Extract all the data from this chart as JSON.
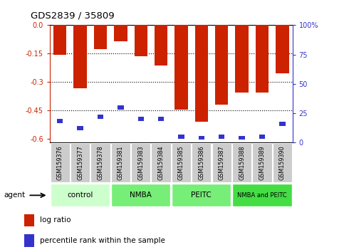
{
  "title": "GDS2839 / 35809",
  "samples": [
    "GSM159376",
    "GSM159377",
    "GSM159378",
    "GSM159381",
    "GSM159383",
    "GSM159384",
    "GSM159385",
    "GSM159386",
    "GSM159387",
    "GSM159388",
    "GSM159389",
    "GSM159390"
  ],
  "log_ratios": [
    -0.155,
    -0.335,
    -0.125,
    -0.085,
    -0.165,
    -0.215,
    -0.445,
    -0.51,
    -0.42,
    -0.355,
    -0.355,
    -0.255
  ],
  "percentile_ranks": [
    18,
    12,
    22,
    30,
    20,
    20,
    5,
    4,
    5,
    4,
    5,
    16
  ],
  "ylim_left": [
    -0.62,
    0.0
  ],
  "ylim_right": [
    0,
    100
  ],
  "yticks_left": [
    0.0,
    -0.15,
    -0.3,
    -0.45,
    -0.6
  ],
  "yticks_right": [
    0,
    25,
    50,
    75,
    100
  ],
  "bar_color": "#cc2200",
  "marker_color": "#3333cc",
  "bar_width": 0.65,
  "left_ycolor": "#cc2200",
  "right_ycolor": "#3333cc",
  "agent_label": "agent",
  "group_defs": [
    [
      0,
      2,
      "control",
      "#ccffcc"
    ],
    [
      3,
      5,
      "NMBA",
      "#77ee77"
    ],
    [
      6,
      8,
      "PEITC",
      "#77ee77"
    ],
    [
      9,
      11,
      "NMBA and PEITC",
      "#44dd44"
    ]
  ]
}
